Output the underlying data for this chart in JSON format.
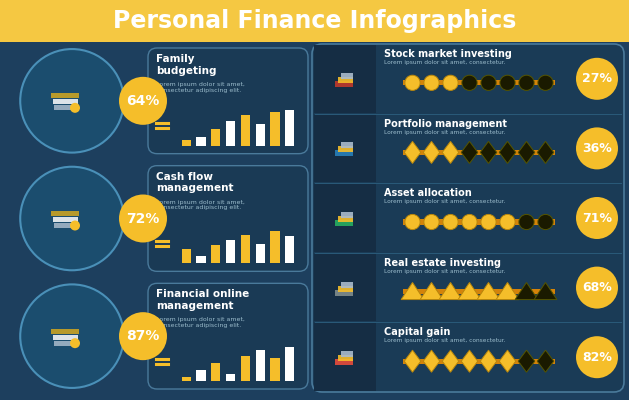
{
  "title": "Personal Finance Infographics",
  "title_bg": "#F5C842",
  "main_bg": "#1D3F5E",
  "card_bg": "#1A3A55",
  "card_border": "#4A7A9B",
  "right_bg": "#1A3B56",
  "yellow": "#F5BE2A",
  "dark_yellow": "#B8860B",
  "orange_bar": "#D4830A",
  "white": "#FFFFFF",
  "dark_dot": "#1A1A00",
  "text_gray": "#9BBCCC",
  "circle_bg": "#1B4D6E",
  "circle_border": "#4A90B8",
  "left_items": [
    {
      "label": "Family\nbudgeting",
      "pct": "64%",
      "bars": [
        0.15,
        0.25,
        0.45,
        0.7,
        0.85,
        0.6,
        0.95,
        1.0
      ]
    },
    {
      "label": "Cash flow\nmanagement",
      "pct": "72%",
      "bars": [
        0.4,
        0.2,
        0.5,
        0.65,
        0.8,
        0.55,
        0.9,
        0.75
      ]
    },
    {
      "label": "Financial online\nmanagement",
      "pct": "87%",
      "bars": [
        0.1,
        0.3,
        0.5,
        0.2,
        0.7,
        0.85,
        0.65,
        0.95
      ]
    }
  ],
  "right_items": [
    {
      "title": "Stock market investing",
      "sub": "Lorem ipsum dolor sit amet, consectetur.",
      "pct": "27%",
      "shape": "circle",
      "filled": 3,
      "total": 8
    },
    {
      "title": "Portfolio management",
      "sub": "Lorem ipsum dolor sit amet, consectetur.",
      "pct": "36%",
      "shape": "diamond",
      "filled": 3,
      "total": 8
    },
    {
      "title": "Asset allocation",
      "sub": "Lorem ipsum dolor sit amet, consectetur.",
      "pct": "71%",
      "shape": "circle",
      "filled": 6,
      "total": 8
    },
    {
      "title": "Real estate investing",
      "sub": "Lorem ipsum dolor sit amet, consectetur.",
      "pct": "68%",
      "shape": "triangle",
      "filled": 6,
      "total": 8
    },
    {
      "title": "Capital gain",
      "sub": "Lorem ipsum dolor sit amet, consectetur.",
      "pct": "82%",
      "shape": "diamond",
      "filled": 6,
      "total": 8
    }
  ]
}
